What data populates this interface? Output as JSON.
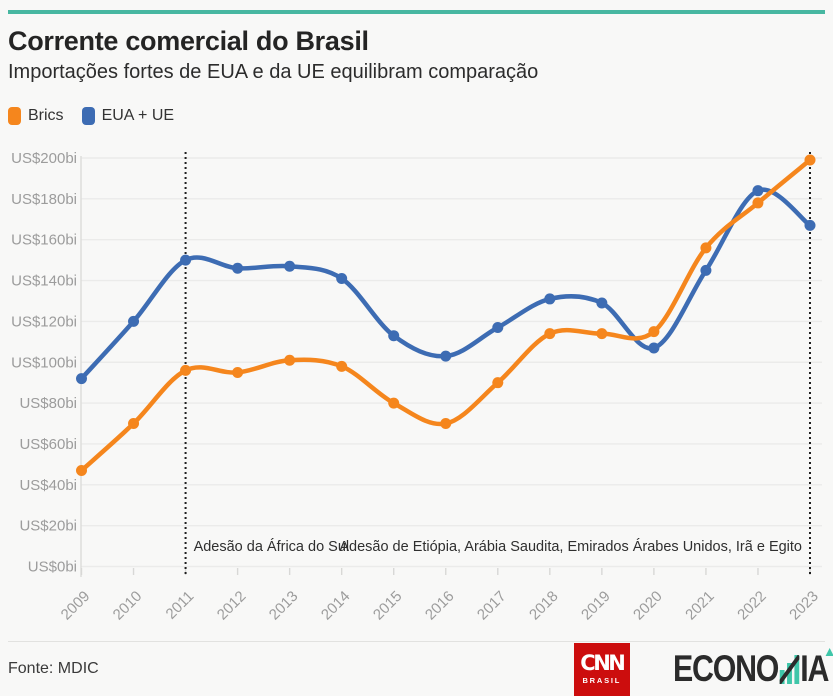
{
  "page": {
    "background": "#f8f8f7",
    "accent_bar_color": "#47b7a1"
  },
  "header": {
    "title": "Corrente comercial do Brasil",
    "subtitle": "Importações fortes de EUA e da UE equilibram comparação"
  },
  "legend": {
    "items": [
      {
        "label": "Brics",
        "color": "#f5861d"
      },
      {
        "label": "EUA + UE",
        "color": "#3d6cb3"
      }
    ]
  },
  "chart_data": {
    "type": "line",
    "x": [
      "2009",
      "2010",
      "2011",
      "2012",
      "2013",
      "2014",
      "2015",
      "2016",
      "2017",
      "2018",
      "2019",
      "2020",
      "2021",
      "2022",
      "2023"
    ],
    "series": [
      {
        "name": "EUA + UE",
        "color": "#3d6cb3",
        "values": [
          92,
          120,
          150,
          146,
          147,
          141,
          113,
          103,
          117,
          131,
          129,
          107,
          145,
          184,
          167
        ]
      },
      {
        "name": "Brics",
        "color": "#f5861d",
        "values": [
          47,
          70,
          96,
          95,
          101,
          98,
          80,
          70,
          90,
          114,
          114,
          115,
          156,
          178,
          199
        ]
      }
    ],
    "title": "Corrente comercial do Brasil",
    "subtitle": "Importações fortes de EUA e da UE equilibram comparação",
    "xlabel": "",
    "ylabel": "US$ bilhões",
    "ylim": [
      0,
      200
    ],
    "yticks": [
      0,
      20,
      40,
      60,
      80,
      100,
      120,
      140,
      160,
      180,
      200
    ],
    "ytick_labels": [
      "US$0bi",
      "US$20bi",
      "US$40bi",
      "US$60bi",
      "US$80bi",
      "US$100bi",
      "US$120bi",
      "US$140bi",
      "US$160bi",
      "US$180bi",
      "US$200bi"
    ],
    "grid": "horizontal",
    "legend_position": "top-left",
    "annotations": [
      {
        "x": "2011",
        "label": "Adesão da África do Sul",
        "align": "left"
      },
      {
        "x": "2023",
        "label": "Adesão de Etiópia, Arábia Saudita, Emirados Árabes Unidos, Irã e Egito",
        "align": "right"
      }
    ],
    "style": {
      "grid_color": "#ebebea",
      "axis_color": "#dcdcda",
      "tick_color": "#d8d8d6",
      "axis_label_color": "#9c9c9c",
      "annotation_color": "#2f2f2f",
      "dotted_line_color": "#1f1f1f"
    }
  },
  "footer": {
    "source": "Fonte: MDIC",
    "cnn_logo": {
      "text": "CNN",
      "sub": "BRASIL",
      "color": "#cc0d0d"
    },
    "economia_logo": {
      "before_m": "ECONO",
      "after_m": "IA",
      "accent_color": "#3fc6a9",
      "text_color": "#2b2b2b"
    }
  }
}
